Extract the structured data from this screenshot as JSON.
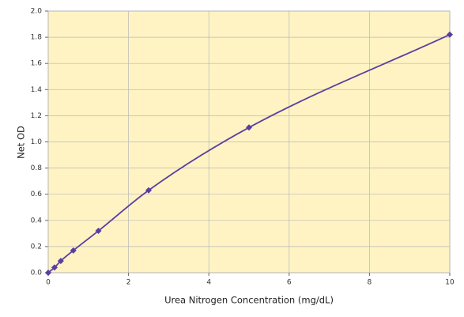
{
  "chart_data": {
    "type": "line",
    "x_label": "Urea Nitrogen Concentration (mg/dL)",
    "y_label": "Net OD",
    "x": [
      0,
      0.156,
      0.3125,
      0.625,
      1.25,
      2.5,
      5,
      10
    ],
    "series": [
      {
        "color": "#5a3e9e",
        "values": [
          0,
          0.04,
          0.09,
          0.17,
          0.32,
          0.63,
          1.11,
          1.82
        ]
      }
    ],
    "xlim": [
      0,
      10
    ],
    "xticks": [
      0,
      2,
      4,
      6,
      8,
      10
    ],
    "ylim": [
      0,
      2.0
    ],
    "yticks": [
      {
        "value": 0,
        "label": "0.0"
      },
      0.2,
      0.4,
      0.6,
      0.8,
      {
        "value": 1.0,
        "label": "1.0"
      },
      1.2,
      1.4,
      1.6,
      1.8,
      {
        "value": 2.0,
        "label": "2.0"
      }
    ],
    "grid": true,
    "background": "#fff3c4"
  }
}
